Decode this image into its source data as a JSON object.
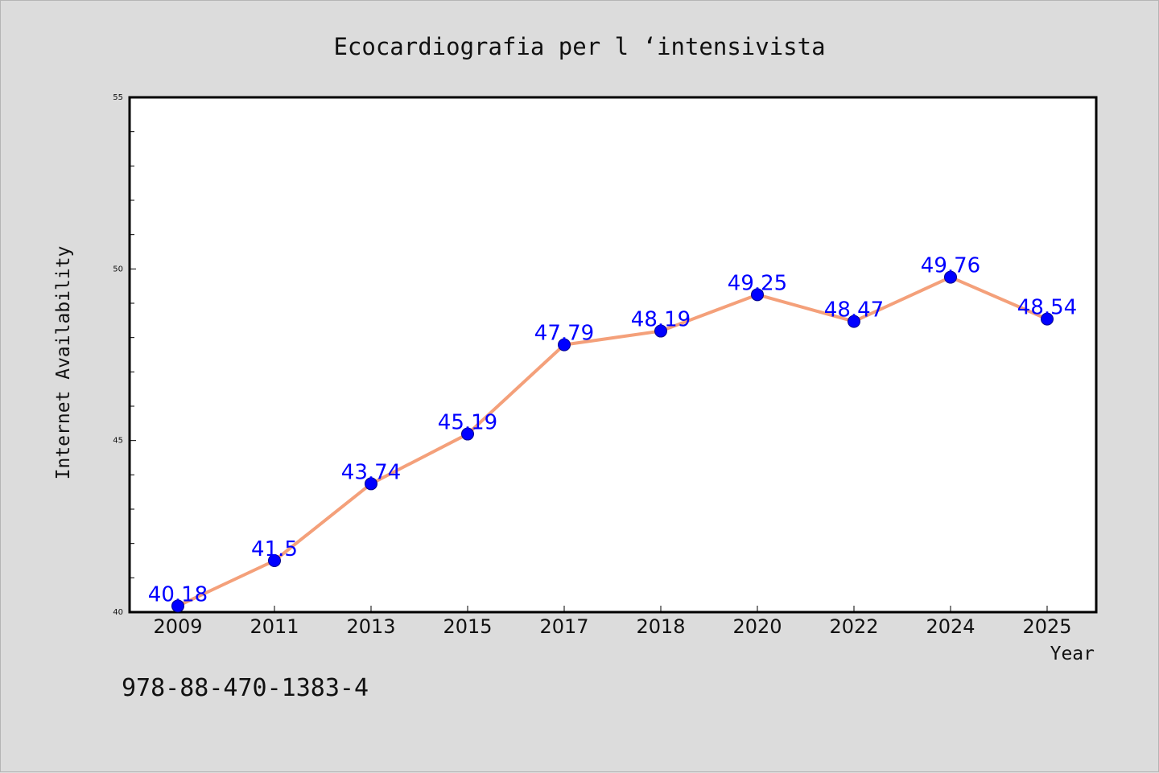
{
  "chart_data": {
    "type": "line",
    "title": "Ecocardiografia per l ‘intensivista",
    "xlabel": "Year",
    "ylabel": "Internet Availability",
    "categories": [
      "2009",
      "2011",
      "2013",
      "2015",
      "2017",
      "2018",
      "2020",
      "2022",
      "2024",
      "2025"
    ],
    "series": [
      {
        "values": [
          40.18,
          41.5,
          43.74,
          45.19,
          47.79,
          48.19,
          49.25,
          48.47,
          49.76,
          48.54
        ],
        "labels": [
          "40.18",
          "41.5",
          "43.74",
          "45.19",
          "47.79",
          "48.19",
          "49.25",
          "48.47",
          "49.76",
          "48.54"
        ],
        "line_color": "#f4a07a",
        "marker_color": "#0000ff"
      }
    ],
    "ylim": [
      40,
      55
    ],
    "yticks": [
      "40",
      "45",
      "50",
      "55"
    ],
    "grid": false,
    "legend": "none"
  },
  "footer": {
    "isbn": "978-88-470-1383-4"
  },
  "colors": {
    "background": "#dcdcdc",
    "plot_background": "#ffffff",
    "label_color": "#0000ff"
  }
}
